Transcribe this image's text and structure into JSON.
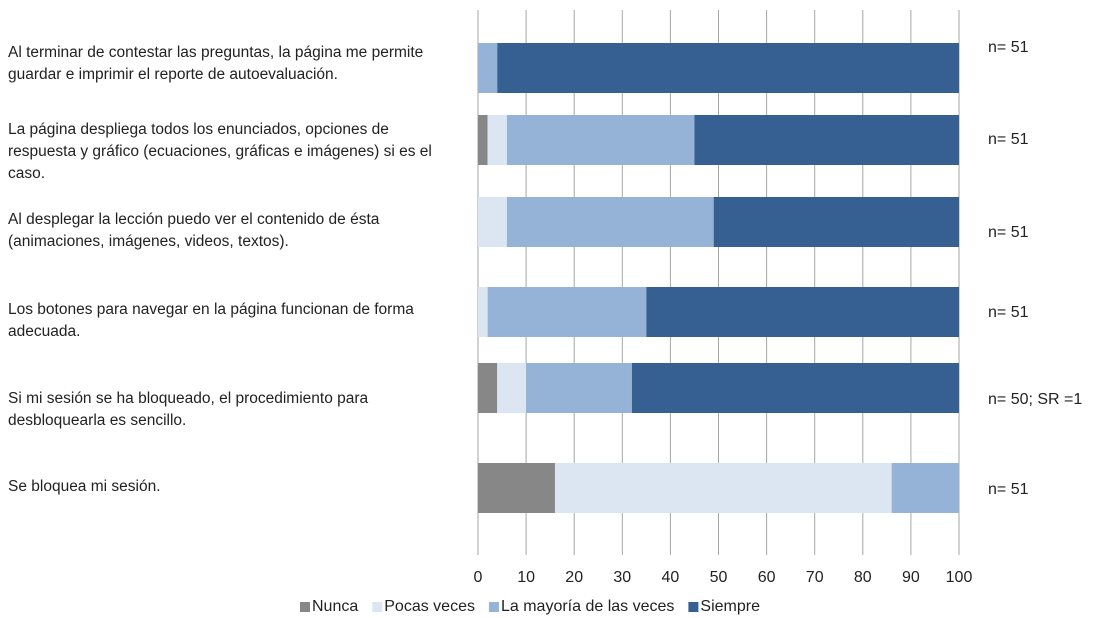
{
  "chart_data": {
    "type": "stacked_barh",
    "categories": [
      "Al terminar de contestar las preguntas, la página me permite guardar e imprimir el reporte de autoevaluación.",
      "La página despliega todos los enunciados, opciones de respuesta y gráfico (ecuaciones, gráficas e imágenes) si es el caso.",
      "Al desplegar la lección puedo ver el contenido de ésta (animaciones, imágenes, videos, textos).",
      "Los botones para navegar en la página funcionan de forma adecuada.",
      "Si mi sesión se ha bloqueado, el procedimiento para desbloquearla es sencillo.",
      "Se bloquea mi sesión."
    ],
    "series": [
      {
        "name": "Nunca",
        "color": "#878787",
        "values": [
          0,
          2,
          0,
          0,
          4,
          16
        ]
      },
      {
        "name": "Pocas veces",
        "color": "#dce6f2",
        "values": [
          0,
          4,
          6,
          2,
          6,
          70
        ]
      },
      {
        "name": "La mayoría de las veces",
        "color": "#95b3d7",
        "values": [
          4,
          39,
          43,
          33,
          22,
          14
        ]
      },
      {
        "name": "Siempre",
        "color": "#376092",
        "values": [
          96,
          55,
          51,
          65,
          68,
          0
        ]
      }
    ],
    "annotations": [
      "n= 51",
      "n= 51",
      "n= 51",
      "n= 51",
      "n= 50; SR =1",
      "n= 51"
    ],
    "xlim": [
      0,
      100
    ],
    "xticks": [
      0,
      10,
      20,
      30,
      40,
      50,
      60,
      70,
      80,
      90,
      100
    ],
    "grid": true,
    "legend": "bottom"
  }
}
